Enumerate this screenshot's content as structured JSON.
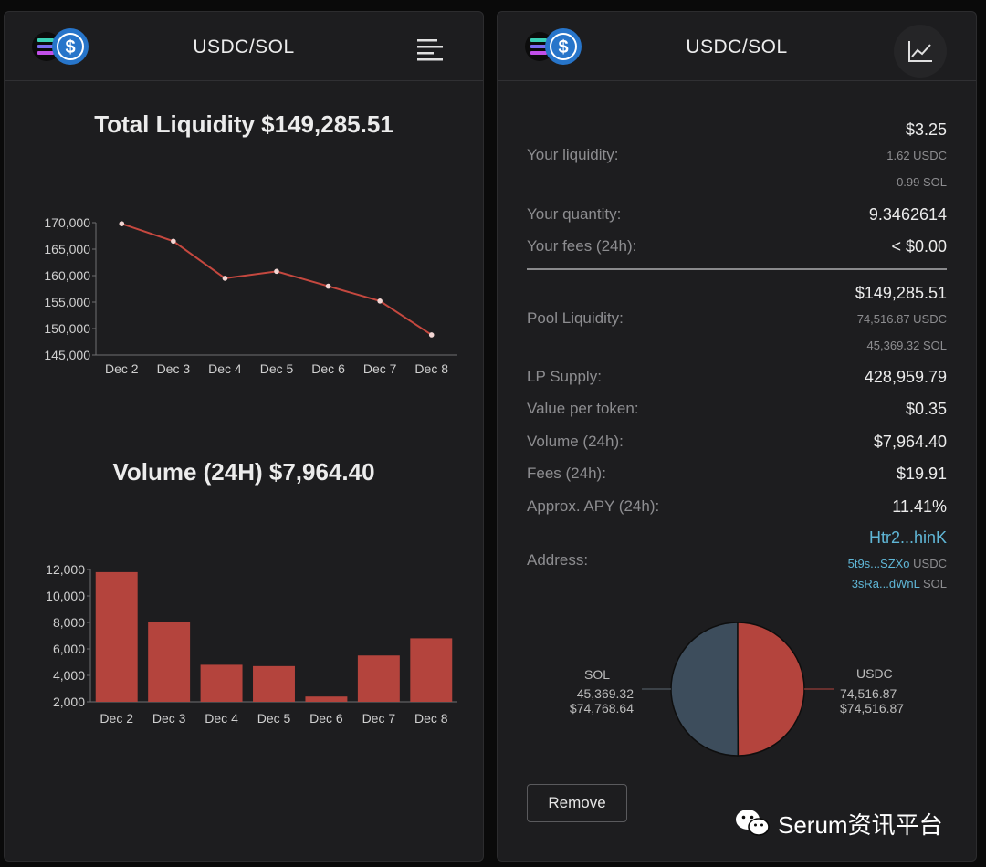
{
  "pair_title": "USDC/SOL",
  "left": {
    "liquidity_title": "Total Liquidity $149,285.51",
    "volume_title": "Volume (24H) $7,964.40"
  },
  "chart_data": [
    {
      "type": "line",
      "title": "Total Liquidity $149,285.51",
      "categories": [
        "Dec 2",
        "Dec 3",
        "Dec 4",
        "Dec 5",
        "Dec 6",
        "Dec 7",
        "Dec 8"
      ],
      "values": [
        169800,
        166500,
        159500,
        160800,
        158000,
        155200,
        148800
      ],
      "y_ticks": [
        "170,000",
        "165,000",
        "160,000",
        "155,000",
        "150,000",
        "145,000"
      ],
      "ylim": [
        145000,
        170000
      ],
      "color": "#c5483f",
      "grid": false
    },
    {
      "type": "bar",
      "title": "Volume (24H) $7,964.40",
      "categories": [
        "Dec 2",
        "Dec 3",
        "Dec 4",
        "Dec 5",
        "Dec 6",
        "Dec 7",
        "Dec 8"
      ],
      "values": [
        11800,
        8000,
        4800,
        4700,
        2400,
        5500,
        6800
      ],
      "y_ticks": [
        "12,000",
        "10,000",
        "8,000",
        "6,000",
        "4,000",
        "2,000"
      ],
      "ylim": [
        2000,
        12000
      ],
      "color": "#b4443d",
      "grid": false
    },
    {
      "type": "pie",
      "categories": [
        "SOL",
        "USDC"
      ],
      "values": [
        74768.64,
        74516.87
      ],
      "colors": [
        "#3d4d5c",
        "#b4443d"
      ],
      "labels": [
        {
          "name": "SOL",
          "amount": "45,369.32",
          "usd": "$74,768.64"
        },
        {
          "name": "USDC",
          "amount": "74,516.87",
          "usd": "$74,516.87"
        }
      ]
    }
  ],
  "right": {
    "your_liquidity": {
      "label": "Your liquidity:",
      "value": "$3.25",
      "sub1": "1.62 USDC",
      "sub2": "0.99 SOL"
    },
    "your_quantity": {
      "label": "Your quantity:",
      "value": "9.3462614"
    },
    "your_fees": {
      "label": "Your fees (24h):",
      "value": "< $0.00"
    },
    "pool_liquidity": {
      "label": "Pool Liquidity:",
      "value": "$149,285.51",
      "sub1": "74,516.87 USDC",
      "sub2": "45,369.32 SOL"
    },
    "lp_supply": {
      "label": "LP Supply:",
      "value": "428,959.79"
    },
    "value_per_token": {
      "label": "Value per token:",
      "value": "$0.35"
    },
    "volume": {
      "label": "Volume (24h):",
      "value": "$7,964.40"
    },
    "fees": {
      "label": "Fees (24h):",
      "value": "$19.91"
    },
    "apy": {
      "label": "Approx. APY (24h):",
      "value": "11.41%"
    },
    "address": {
      "label": "Address:",
      "main": "Htr2...hinK",
      "usdc_link": "5t9s...SZXo",
      "usdc_suffix": "USDC",
      "sol_link": "3sRa...dWnL",
      "sol_suffix": "SOL"
    },
    "remove_label": "Remove"
  },
  "watermark": "Serum资讯平台",
  "colors": {
    "accent_red": "#b4443d",
    "usdc_blue": "#2775ca",
    "link": "#5fb6d6",
    "panel_bg": "#1d1d1f"
  }
}
